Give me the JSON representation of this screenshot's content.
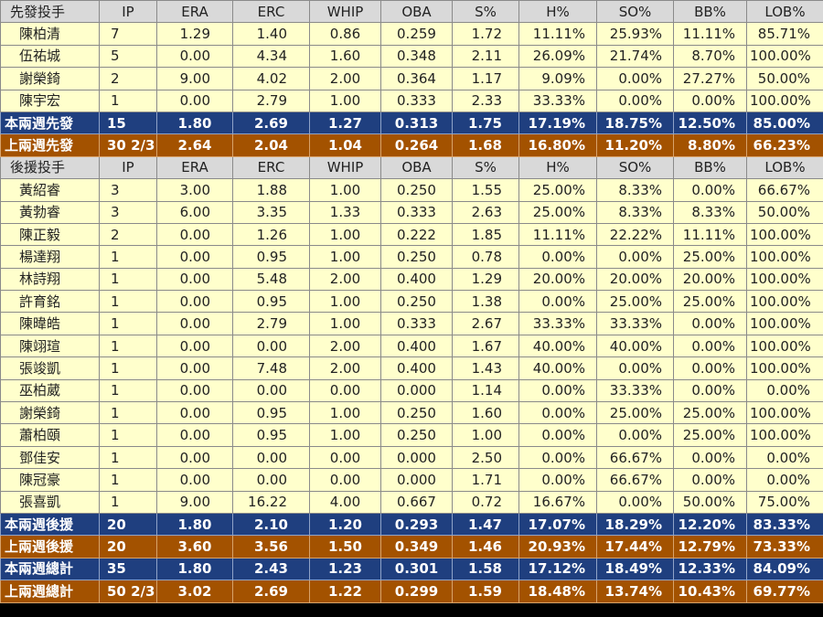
{
  "starter_header": [
    "先發投手",
    "IP",
    "ERA",
    "ERC",
    "WHIP",
    "OBA",
    "S%",
    "H%",
    "SO%",
    "BB%",
    "LOB%"
  ],
  "starters": [
    [
      "陳柏清",
      "7",
      "1.29",
      "1.40",
      "0.86",
      "0.259",
      "1.72",
      "11.11%",
      "25.93%",
      "11.11%",
      "85.71%"
    ],
    [
      "伍祐城",
      "5",
      "0.00",
      "4.34",
      "1.60",
      "0.348",
      "2.11",
      "26.09%",
      "21.74%",
      "8.70%",
      "100.00%"
    ],
    [
      "謝榮錡",
      "2",
      "9.00",
      "4.02",
      "2.00",
      "0.364",
      "1.17",
      "9.09%",
      "0.00%",
      "27.27%",
      "50.00%"
    ],
    [
      "陳宇宏",
      "1",
      "0.00",
      "2.79",
      "1.00",
      "0.333",
      "2.33",
      "33.33%",
      "0.00%",
      "0.00%",
      "100.00%"
    ]
  ],
  "starter_summary_this": [
    "本兩週先發",
    "15",
    "1.80",
    "2.69",
    "1.27",
    "0.313",
    "1.75",
    "17.19%",
    "18.75%",
    "12.50%",
    "85.00%"
  ],
  "starter_summary_last": [
    "上兩週先發",
    "30 2/3",
    "2.64",
    "2.04",
    "1.04",
    "0.264",
    "1.68",
    "16.80%",
    "11.20%",
    "8.80%",
    "66.23%"
  ],
  "reliever_header": [
    "後援投手",
    "IP",
    "ERA",
    "ERC",
    "WHIP",
    "OBA",
    "S%",
    "H%",
    "SO%",
    "BB%",
    "LOB%"
  ],
  "relievers": [
    [
      "黃紹睿",
      "3",
      "3.00",
      "1.88",
      "1.00",
      "0.250",
      "1.55",
      "25.00%",
      "8.33%",
      "0.00%",
      "66.67%"
    ],
    [
      "黃勃睿",
      "3",
      "6.00",
      "3.35",
      "1.33",
      "0.333",
      "2.63",
      "25.00%",
      "8.33%",
      "8.33%",
      "50.00%"
    ],
    [
      "陳正毅",
      "2",
      "0.00",
      "1.26",
      "1.00",
      "0.222",
      "1.85",
      "11.11%",
      "22.22%",
      "11.11%",
      "100.00%"
    ],
    [
      "楊達翔",
      "1",
      "0.00",
      "0.95",
      "1.00",
      "0.250",
      "0.78",
      "0.00%",
      "0.00%",
      "25.00%",
      "100.00%"
    ],
    [
      "林詩翔",
      "1",
      "0.00",
      "5.48",
      "2.00",
      "0.400",
      "1.29",
      "20.00%",
      "20.00%",
      "20.00%",
      "100.00%"
    ],
    [
      "許育銘",
      "1",
      "0.00",
      "0.95",
      "1.00",
      "0.250",
      "1.38",
      "0.00%",
      "25.00%",
      "25.00%",
      "100.00%"
    ],
    [
      "陳暐皓",
      "1",
      "0.00",
      "2.79",
      "1.00",
      "0.333",
      "2.67",
      "33.33%",
      "33.33%",
      "0.00%",
      "100.00%"
    ],
    [
      "陳翊瑄",
      "1",
      "0.00",
      "0.00",
      "2.00",
      "0.400",
      "1.67",
      "40.00%",
      "40.00%",
      "0.00%",
      "100.00%"
    ],
    [
      "張竣凱",
      "1",
      "0.00",
      "7.48",
      "2.00",
      "0.400",
      "1.43",
      "40.00%",
      "0.00%",
      "0.00%",
      "100.00%"
    ],
    [
      "巫柏葳",
      "1",
      "0.00",
      "0.00",
      "0.00",
      "0.000",
      "1.14",
      "0.00%",
      "33.33%",
      "0.00%",
      "0.00%"
    ],
    [
      "謝榮錡",
      "1",
      "0.00",
      "0.95",
      "1.00",
      "0.250",
      "1.60",
      "0.00%",
      "25.00%",
      "25.00%",
      "100.00%"
    ],
    [
      "蕭柏頤",
      "1",
      "0.00",
      "0.95",
      "1.00",
      "0.250",
      "1.00",
      "0.00%",
      "0.00%",
      "25.00%",
      "100.00%"
    ],
    [
      "鄧佳安",
      "1",
      "0.00",
      "0.00",
      "0.00",
      "0.000",
      "2.50",
      "0.00%",
      "66.67%",
      "0.00%",
      "0.00%"
    ],
    [
      "陳冠豪",
      "1",
      "0.00",
      "0.00",
      "0.00",
      "0.000",
      "1.71",
      "0.00%",
      "66.67%",
      "0.00%",
      "0.00%"
    ],
    [
      "張喜凱",
      "1",
      "9.00",
      "16.22",
      "4.00",
      "0.667",
      "0.72",
      "16.67%",
      "0.00%",
      "50.00%",
      "75.00%"
    ]
  ],
  "reliever_summary_this": [
    "本兩週後援",
    "20",
    "1.80",
    "2.10",
    "1.20",
    "0.293",
    "1.47",
    "17.07%",
    "18.29%",
    "12.20%",
    "83.33%"
  ],
  "reliever_summary_last": [
    "上兩週後援",
    "20",
    "3.60",
    "3.56",
    "1.50",
    "0.349",
    "1.46",
    "20.93%",
    "17.44%",
    "12.79%",
    "73.33%"
  ],
  "total_this": [
    "本兩週總計",
    "35",
    "1.80",
    "2.43",
    "1.23",
    "0.301",
    "1.58",
    "17.12%",
    "18.49%",
    "12.33%",
    "84.09%"
  ],
  "total_last": [
    "上兩週總計",
    "50 2/3",
    "3.02",
    "2.69",
    "1.22",
    "0.299",
    "1.59",
    "18.48%",
    "13.74%",
    "10.43%",
    "69.77%"
  ],
  "colors": {
    "header_bg": "#d9d9d9",
    "row_bg": "#ffffcc",
    "this_period_bg": "#1f3f7f",
    "last_period_bg": "#a35200"
  }
}
